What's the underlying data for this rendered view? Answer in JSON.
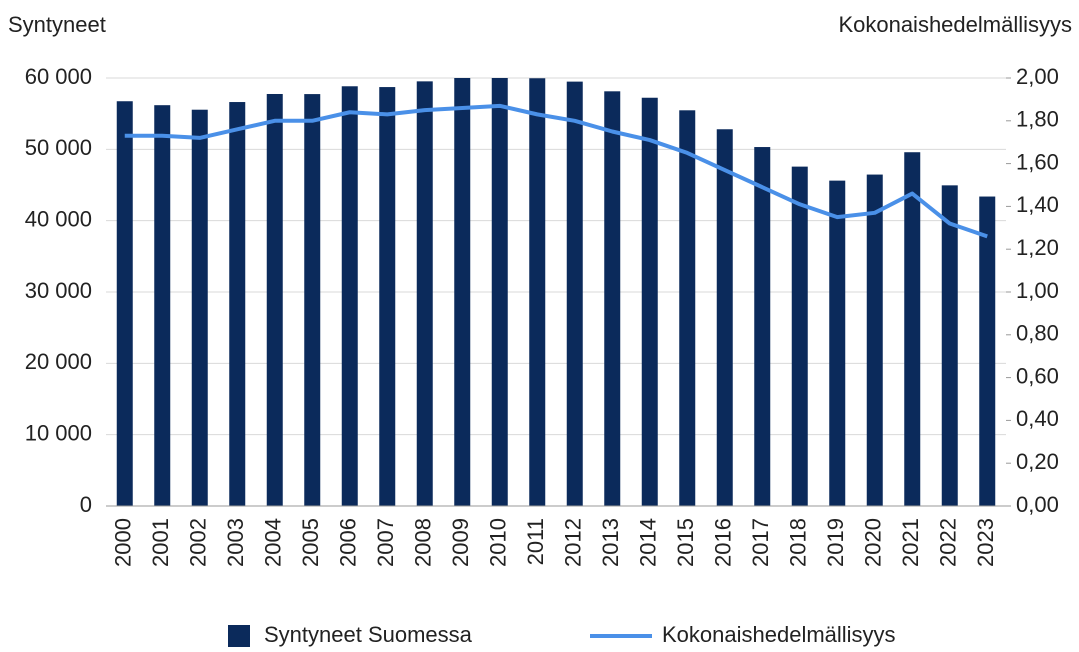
{
  "chart_data": {
    "type": "bar_line",
    "y_title": "Syntyneet",
    "y2_title": "Kokonaishedelmällisyys",
    "categories": [
      "2000",
      "2001",
      "2002",
      "2003",
      "2004",
      "2005",
      "2006",
      "2007",
      "2008",
      "2009",
      "2010",
      "2011",
      "2012",
      "2013",
      "2014",
      "2015",
      "2016",
      "2017",
      "2018",
      "2019",
      "2020",
      "2021",
      "2022",
      "2023"
    ],
    "series": [
      {
        "name": "Syntyneet Suomessa",
        "type": "bar",
        "color": "#0b2a5b",
        "values": [
          56742,
          56189,
          55555,
          56630,
          57758,
          57745,
          58840,
          58729,
          59530,
          60000,
          60000,
          59961,
          59493,
          58134,
          57232,
          55472,
          52814,
          50321,
          47577,
          45613,
          46463,
          49594,
          44951,
          43383
        ]
      },
      {
        "name": "Kokonaishedelmällisyys",
        "type": "line",
        "axis": "y2",
        "color": "#4a90e8",
        "values": [
          1.73,
          1.73,
          1.72,
          1.76,
          1.8,
          1.8,
          1.84,
          1.83,
          1.85,
          1.86,
          1.87,
          1.83,
          1.8,
          1.75,
          1.71,
          1.65,
          1.57,
          1.49,
          1.41,
          1.35,
          1.37,
          1.46,
          1.32,
          1.26
        ]
      }
    ],
    "ylim": [
      0,
      60000
    ],
    "yticks": [
      0,
      {
        "value": 10000,
        "label": "10 000"
      },
      {
        "value": 20000,
        "label": "20 000"
      },
      {
        "value": 30000,
        "label": "30 000"
      },
      {
        "value": 40000,
        "label": "40 000"
      },
      {
        "value": 50000,
        "label": "50 000"
      },
      {
        "value": 60000,
        "label": "60 000"
      }
    ],
    "y2lim": [
      0,
      2
    ],
    "y2ticks": [
      {
        "value": 0,
        "label": "0,00"
      },
      {
        "value": 0.2,
        "label": "0,20"
      },
      {
        "value": 0.4,
        "label": "0,40"
      },
      {
        "value": 0.6,
        "label": "0,60"
      },
      {
        "value": 0.8,
        "label": "0,80"
      },
      {
        "value": 1,
        "label": "1,00"
      },
      {
        "value": 1.2,
        "label": "1,20"
      },
      {
        "value": 1.4,
        "label": "1,40"
      },
      {
        "value": 1.6,
        "label": "1,60"
      },
      {
        "value": 1.8,
        "label": "1,80"
      },
      {
        "value": 2,
        "label": "2,00"
      }
    ],
    "grid": true,
    "legend": "bottom"
  }
}
